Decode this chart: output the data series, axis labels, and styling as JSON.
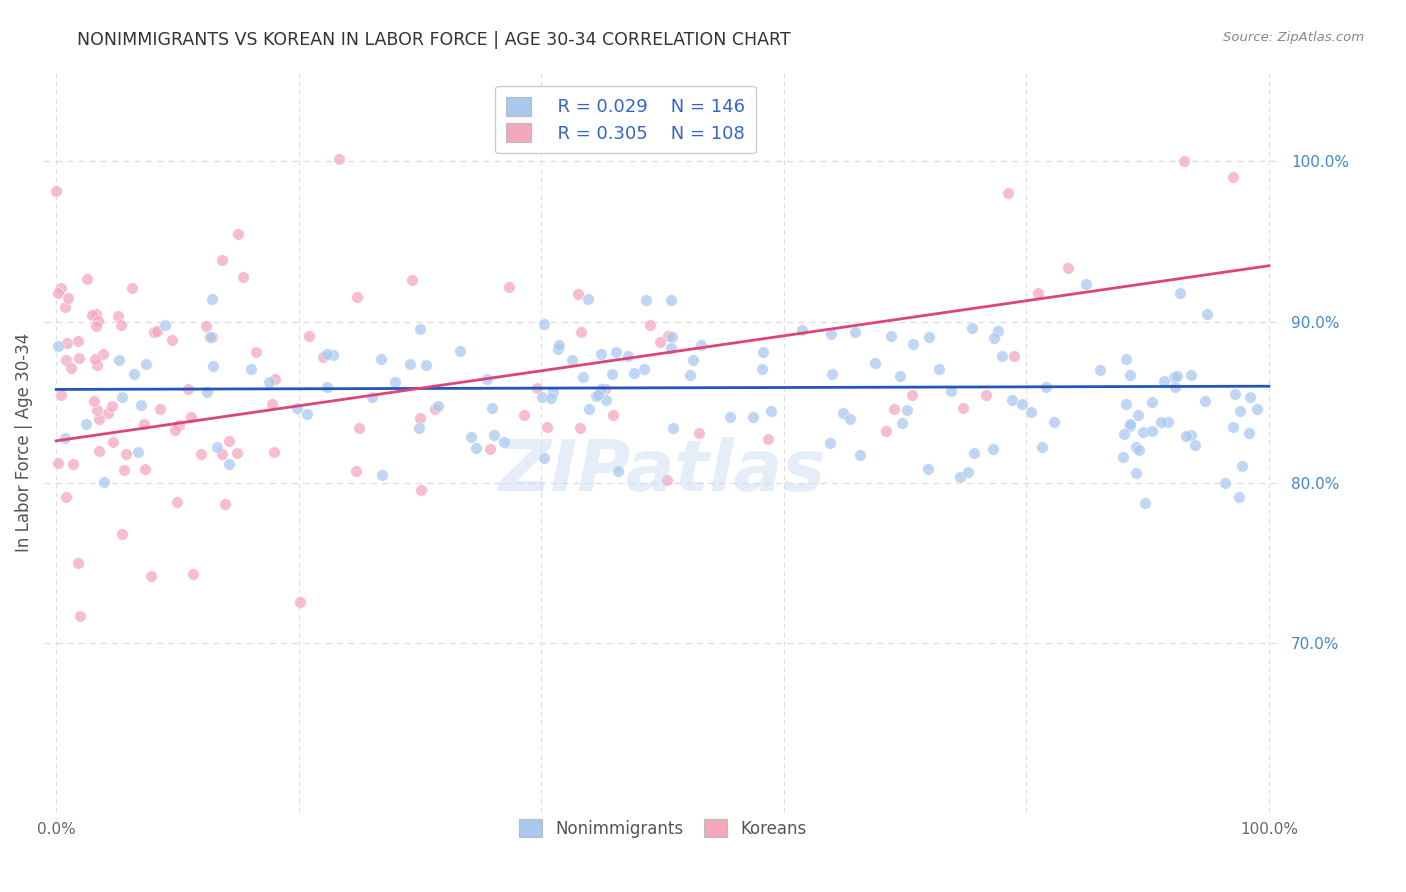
{
  "title": "NONIMMIGRANTS VS KOREAN IN LABOR FORCE | AGE 30-34 CORRELATION CHART",
  "source_text": "Source: ZipAtlas.com",
  "ylabel": "In Labor Force | Age 30-34",
  "watermark": "ZIPatlas",
  "xlim": [
    -0.01,
    1.01
  ],
  "ylim": [
    0.595,
    1.055
  ],
  "x_ticks": [
    0.0,
    0.2,
    0.4,
    0.6,
    0.8,
    1.0
  ],
  "x_tick_labels": [
    "0.0%",
    "",
    "",
    "",
    "",
    "100.0%"
  ],
  "y_tick_labels_right": [
    "100.0%",
    "90.0%",
    "80.0%",
    "70.0%"
  ],
  "y_tick_vals_right": [
    1.0,
    0.9,
    0.8,
    0.7
  ],
  "legend_r_blue": "R = 0.029",
  "legend_n_blue": "N = 146",
  "legend_r_pink": "R = 0.305",
  "legend_n_pink": "N = 108",
  "blue_color": "#a8c8f0",
  "pink_color": "#f4a8bc",
  "line_blue": "#2255bb",
  "line_pink": "#dd4477",
  "legend_text_color": "#3366cc",
  "title_color": "#333333",
  "background_color": "#ffffff",
  "grid_color": "#dddddd",
  "right_label_color": "#4488cc"
}
